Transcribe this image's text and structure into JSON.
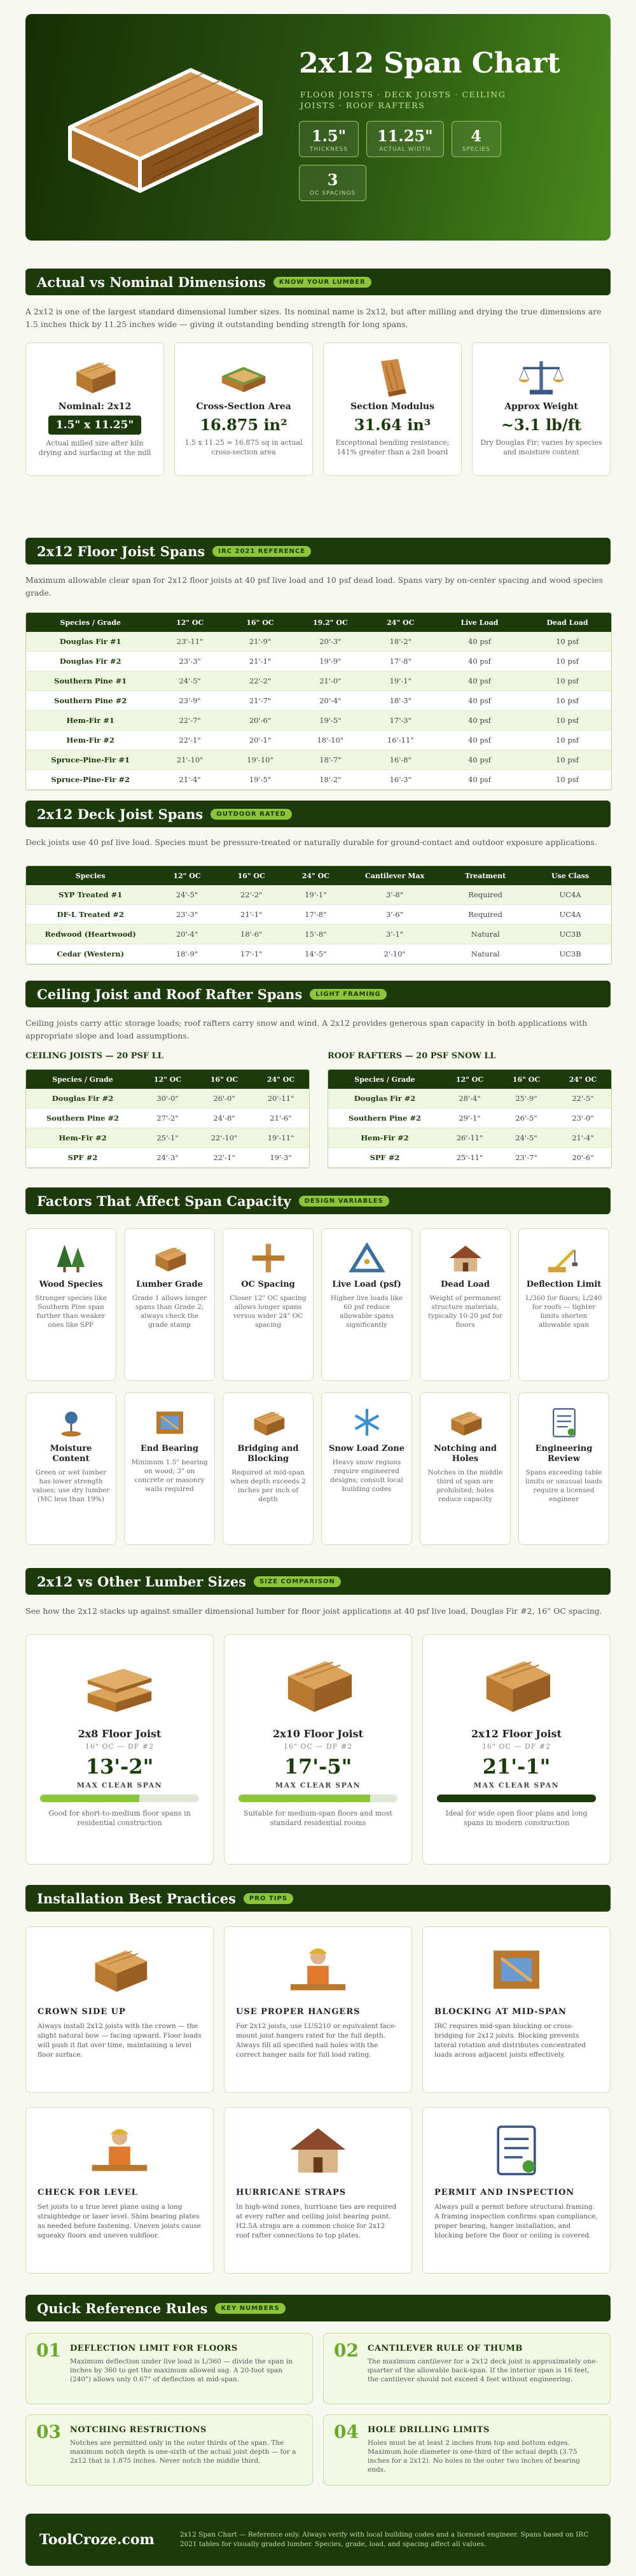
{
  "header": {
    "title": "2x12 Span Chart",
    "subtitle": "FLOOR JOISTS · DECK JOISTS · CEILING JOISTS · ROOF RAFTERS",
    "stats": [
      {
        "value": "1.5\"",
        "label": "THICKNESS"
      },
      {
        "value": "11.25\"",
        "label": "ACTUAL WIDTH"
      },
      {
        "value": "4",
        "label": "SPECIES"
      },
      {
        "value": "3",
        "label": "OC SPACINGS"
      }
    ]
  },
  "dimensions": {
    "title": "Actual vs Nominal Dimensions",
    "badge": "KNOW YOUR LUMBER",
    "intro": "A 2x12 is one of the largest standard dimensional lumber sizes. Its nominal name is 2x12, but after milling and drying the true dimensions are 1.5 inches thick by 11.25 inches wide — giving it outstanding bending strength for long spans.",
    "cards": [
      {
        "title": "Nominal: 2x12",
        "value": "1.5\" x 11.25\"",
        "note": "Actual milled size after kiln drying and surfacing at the mill"
      },
      {
        "title": "Cross-Section Area",
        "value": "16.875 in²",
        "note": "1.5 x 11.25 = 16.875 sq in actual cross-section area"
      },
      {
        "title": "Section Modulus",
        "value": "31.64 in³",
        "note": "Exceptional bending resistance; 141% greater than a 2x8 board"
      },
      {
        "title": "Approx Weight",
        "value": "~3.1 lb/ft",
        "note": "Dry Douglas Fir; varies by species and moisture content"
      }
    ]
  },
  "floor_joists": {
    "title": "2x12 Floor Joist Spans",
    "badge": "IRC 2021 REFERENCE",
    "intro": "Maximum allowable clear span for 2x12 floor joists at 40 psf live load and 10 psf dead load. Spans vary by on-center spacing and wood species grade.",
    "table": {
      "headers": [
        "Species / Grade",
        "12\" OC",
        "16\" OC",
        "19.2\" OC",
        "24\" OC",
        "Live Load",
        "Dead Load"
      ],
      "rows": [
        [
          "Douglas Fir #1",
          "23'-11\"",
          "21'-9\"",
          "20'-3\"",
          "18'-2\"",
          "40 psf",
          "10 psf"
        ],
        [
          "Douglas Fir #2",
          "23'-3\"",
          "21'-1\"",
          "19'-9\"",
          "17'-8\"",
          "40 psf",
          "10 psf"
        ],
        [
          "Southern Pine #1",
          "24'-5\"",
          "22'-2\"",
          "21'-0\"",
          "19'-1\"",
          "40 psf",
          "10 psf"
        ],
        [
          "Southern Pine #2",
          "23'-9\"",
          "21'-7\"",
          "20'-4\"",
          "18'-3\"",
          "40 psf",
          "10 psf"
        ],
        [
          "Hem-Fir #1",
          "22'-7\"",
          "20'-6\"",
          "19'-5\"",
          "17'-3\"",
          "40 psf",
          "10 psf"
        ],
        [
          "Hem-Fir #2",
          "22'-1\"",
          "20'-1\"",
          "18'-10\"",
          "16'-11\"",
          "40 psf",
          "10 psf"
        ],
        [
          "Spruce-Pine-Fir #1",
          "21'-10\"",
          "19'-10\"",
          "18'-7\"",
          "16'-8\"",
          "40 psf",
          "10 psf"
        ],
        [
          "Spruce-Pine-Fir #2",
          "21'-4\"",
          "19'-5\"",
          "18'-2\"",
          "16'-3\"",
          "40 psf",
          "10 psf"
        ]
      ]
    }
  },
  "deck_joists": {
    "title": "2x12 Deck Joist Spans",
    "badge": "OUTDOOR RATED",
    "intro": "Deck joists use 40 psf live load. Species must be pressure-treated or naturally durable for ground-contact and outdoor exposure applications.",
    "table": {
      "headers": [
        "Species",
        "12\" OC",
        "16\" OC",
        "24\" OC",
        "Cantilever Max",
        "Treatment",
        "Use Class"
      ],
      "rows": [
        [
          "SYP Treated #1",
          "24'-5\"",
          "22'-2\"",
          "19'-1\"",
          "3'-8\"",
          "Required",
          "UC4A"
        ],
        [
          "DF-L Treated #2",
          "23'-3\"",
          "21'-1\"",
          "17'-8\"",
          "3'-6\"",
          "Required",
          "UC4A"
        ],
        [
          "Redwood (Heartwood)",
          "20'-4\"",
          "18'-6\"",
          "15'-8\"",
          "3'-1\"",
          "Natural",
          "UC3B"
        ],
        [
          "Cedar (Western)",
          "18'-9\"",
          "17'-1\"",
          "14'-5\"",
          "2'-10\"",
          "Natural",
          "UC3B"
        ]
      ]
    }
  },
  "ceiling_rafters": {
    "title": "Ceiling Joist and Roof Rafter Spans",
    "badge": "LIGHT FRAMING",
    "intro": "Ceiling joists carry attic storage loads; roof rafters carry snow and wind. A 2x12 provides generous span capacity in both applications with appropriate slope and load assumptions.",
    "tables": [
      {
        "caption": "CEILING JOISTS — 20 PSF LL",
        "headers": [
          "Species / Grade",
          "12\" OC",
          "16\" OC",
          "24\" OC"
        ],
        "rows": [
          [
            "Douglas Fir #2",
            "30'-0\"",
            "26'-0\"",
            "20'-11\""
          ],
          [
            "Southern Pine #2",
            "27'-2\"",
            "24'-8\"",
            "21'-6\""
          ],
          [
            "Hem-Fir #2",
            "25'-1\"",
            "22'-10\"",
            "19'-11\""
          ],
          [
            "SPF #2",
            "24'-3\"",
            "22'-1\"",
            "19'-3\""
          ]
        ]
      },
      {
        "caption": "ROOF RAFTERS — 20 PSF SNOW LL",
        "headers": [
          "Species / Grade",
          "12\" OC",
          "16\" OC",
          "24\" OC"
        ],
        "rows": [
          [
            "Douglas Fir #2",
            "28'-4\"",
            "25'-9\"",
            "22'-5\""
          ],
          [
            "Southern Pine #2",
            "29'-1\"",
            "26'-5\"",
            "23'-0\""
          ],
          [
            "Hem-Fir #2",
            "26'-11\"",
            "24'-5\"",
            "21'-4\""
          ],
          [
            "SPF #2",
            "25'-11\"",
            "23'-7\"",
            "20'-6\""
          ]
        ]
      }
    ]
  },
  "factors": {
    "title": "Factors That Affect Span Capacity",
    "badge": "DESIGN VARIABLES",
    "cards": [
      {
        "title": "Wood Species",
        "text": "Stronger species like Southern Pine span further than weaker ones like SPF"
      },
      {
        "title": "Lumber Grade",
        "text": "Grade 1 allows longer spans than Grade 2; always check the grade stamp"
      },
      {
        "title": "OC Spacing",
        "text": "Closer 12\" OC spacing allows longer spans versus wider 24\" OC spacing"
      },
      {
        "title": "Live Load (psf)",
        "text": "Higher live loads like 60 psf reduce allowable spans significantly"
      },
      {
        "title": "Dead Load",
        "text": "Weight of permanent structure materials, typically 10-20 psf for floors"
      },
      {
        "title": "Deflection Limit",
        "text": "L/360 for floors; L/240 for roofs — tighter limits shorten allowable span"
      },
      {
        "title": "Moisture Content",
        "text": "Green or wet lumber has lower strength values; use dry lumber (MC less than 19%)"
      },
      {
        "title": "End Bearing",
        "text": "Minimum 1.5\" bearing on wood; 3\" on concrete or masonry walls required"
      },
      {
        "title": "Bridging and Blocking",
        "text": "Required at mid-span when depth exceeds 2 inches per inch of depth"
      },
      {
        "title": "Snow Load Zone",
        "text": "Heavy snow regions require engineered designs; consult local building codes"
      },
      {
        "title": "Notching and Holes",
        "text": "Notches in the middle third of span are prohibited; holes reduce capacity"
      },
      {
        "title": "Engineering Review",
        "text": "Spans exceeding table limits or unusual loads require a licensed engineer"
      }
    ]
  },
  "size_comparison": {
    "title": "2x12 vs Other Lumber Sizes",
    "badge": "SIZE COMPARISON",
    "intro": "See how the 2x12 stacks up against smaller dimensional lumber for floor joist applications at 40 psf live load, Douglas Fir #2, 16\" OC spacing.",
    "cards": [
      {
        "title": "2x8 Floor Joist",
        "spec": "16\" OC — DF #2",
        "span": "13'-2\"",
        "span_label": "MAX CLEAR SPAN",
        "text": "Good for short-to-medium floor spans in residential construction"
      },
      {
        "title": "2x10 Floor Joist",
        "spec": "16\" OC — DF #2",
        "span": "17'-5\"",
        "span_label": "MAX CLEAR SPAN",
        "text": "Suitable for medium-span floors and most standard residential rooms"
      },
      {
        "title": "2x12 Floor Joist",
        "spec": "16\" OC — DF #2",
        "span": "21'-1\"",
        "span_label": "MAX CLEAR SPAN",
        "text": "Ideal for wide open floor plans and long spans in modern construction"
      }
    ]
  },
  "installation": {
    "title": "Installation Best Practices",
    "badge": "PRO TIPS",
    "cards": [
      {
        "title": "CROWN SIDE UP",
        "text": "Always install 2x12 joists with the crown — the slight natural bow — facing upward. Floor loads will push it flat over time, maintaining a level floor surface."
      },
      {
        "title": "USE PROPER HANGERS",
        "text": "For 2x12 joists, use LUS210 or equivalent face-mount joist hangers rated for the full depth. Always fill all specified nail holes with the correct hanger nails for full load rating."
      },
      {
        "title": "BLOCKING AT MID-SPAN",
        "text": "IRC requires mid-span blocking or cross-bridging for 2x12 joists. Blocking prevents lateral rotation and distributes concentrated loads across adjacent joists effectively."
      },
      {
        "title": "CHECK FOR LEVEL",
        "text": "Set joists to a true level plane using a long straightedge or laser level. Shim bearing plates as needed before fastening. Uneven joists cause squeaky floors and uneven subfloor."
      },
      {
        "title": "HURRICANE STRAPS",
        "text": "In high-wind zones, hurricane ties are required at every rafter and ceiling joist bearing point. H2.5A straps are a common choice for 2x12 roof rafter connections to top plates."
      },
      {
        "title": "PERMIT AND INSPECTION",
        "text": "Always pull a permit before structural framing. A framing inspection confirms span compliance, proper bearing, hanger installation, and blocking before the floor or ceiling is covered."
      }
    ]
  },
  "quick_reference": {
    "title": "Quick Reference Rules",
    "badge": "KEY NUMBERS",
    "rules": [
      {
        "number": "01",
        "title": "DEFLECTION LIMIT FOR FLOORS",
        "text": "Maximum deflection under live load is L/360 — divide the span in inches by 360 to get the maximum allowed sag. A 20-foot span (240\") allows only 0.67\" of deflection at mid-span."
      },
      {
        "number": "02",
        "title": "CANTILEVER RULE OF THUMB",
        "text": "The maximum cantilever for a 2x12 deck joist is approximately one-quarter of the allowable back-span. If the interior span is 16 feet, the cantilever should not exceed 4 feet without engineering."
      },
      {
        "number": "03",
        "title": "NOTCHING RESTRICTIONS",
        "text": "Notches are permitted only in the outer thirds of the span. The maximum notch depth is one-sixth of the actual joist depth — for a 2x12 that is 1.875 inches. Never notch the middle third."
      },
      {
        "number": "04",
        "title": "HOLE DRILLING LIMITS",
        "text": "Holes must be at least 2 inches from top and bottom edges. Maximum hole diameter is one-third of the actual depth (3.75 inches for a 2x12). No holes in the outer two inches of bearing ends."
      }
    ]
  },
  "footer": {
    "brand": "ToolCroze.com",
    "text": "2x12 Span Chart — Reference only. Always verify with local building codes and a licensed engineer. Spans based on IRC 2021 tables for visually graded lumber. Species, grade, load, and spacing affect all values."
  }
}
